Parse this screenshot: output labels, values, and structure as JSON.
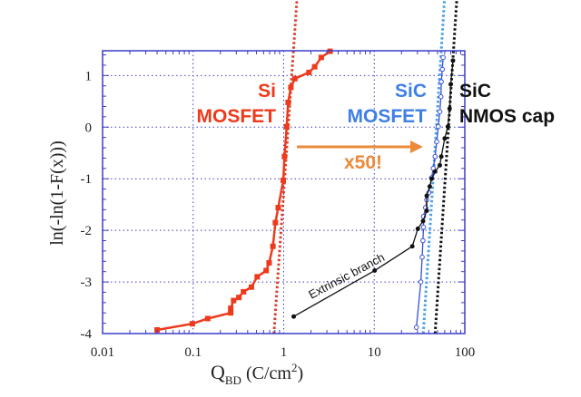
{
  "chart_data": {
    "type": "scatter",
    "xlabel": "Q",
    "xlabel_sub": "BD",
    "xlabel_unit": " (C/cm",
    "xlabel_sup": "2",
    "xlabel_close": ")",
    "ylabel": "ln(-ln(1-F(x)))",
    "xscale": "log",
    "xlim": [
      0.01,
      100
    ],
    "ylim": [
      -4,
      1.48
    ],
    "grid": true,
    "x_ticks": [
      0.01,
      0.1,
      1,
      10,
      100
    ],
    "x_tick_labels": [
      "0.01",
      "0.1",
      "1",
      "10",
      "100"
    ],
    "y_ticks": [
      1,
      0,
      -1,
      -2,
      -3,
      -4
    ],
    "y_tick_labels": [
      "1",
      "0",
      "-1",
      "-2",
      "-3",
      "-4"
    ],
    "colors": {
      "frame": "#3c3cc8",
      "grid": "#3c3cc8",
      "si": "#ee3a1c",
      "si_fit": "#d8402c",
      "sic": "#3a4fd8",
      "sic_fit": "#4aa0e8",
      "nmos": "#111111",
      "arrow": "#ea8a3a",
      "sic_label": "#3f7fe6"
    },
    "series": [
      {
        "name": "Si MOSFET",
        "marker": "filled-square",
        "color": "#ee3a1c",
        "x": [
          0.04,
          0.098,
          0.145,
          0.26,
          0.26,
          0.28,
          0.32,
          0.36,
          0.44,
          0.51,
          0.64,
          0.69,
          0.76,
          0.81,
          0.87,
          0.99,
          1.02,
          1.08,
          1.12,
          1.2,
          1.33,
          1.9,
          2.2,
          2.6,
          3.25
        ],
        "y": [
          -3.93,
          -3.81,
          -3.71,
          -3.6,
          -3.51,
          -3.36,
          -3.3,
          -3.19,
          -3.1,
          -2.9,
          -2.78,
          -2.63,
          -2.31,
          -1.85,
          -1.56,
          -1.03,
          -0.57,
          0.01,
          0.48,
          0.77,
          0.94,
          1.06,
          1.17,
          1.35,
          1.47
        ]
      },
      {
        "name": "SiC MOSFET",
        "marker": "open-circle",
        "color": "#3a4fd8",
        "x": [
          29.2,
          32.7,
          33.8,
          34.5,
          35,
          35,
          36.9,
          38,
          40,
          43,
          44.8,
          47,
          49,
          51,
          53,
          54.5,
          55,
          56.5,
          57.6
        ],
        "y": [
          -3.88,
          -3.0,
          -2.52,
          -2.2,
          -1.94,
          -1.73,
          -1.56,
          -1.41,
          -1.27,
          -0.98,
          -0.8,
          -0.57,
          -0.28,
          0.01,
          0.3,
          0.59,
          0.88,
          1.12,
          1.35
        ]
      },
      {
        "name": "SiC NMOS cap",
        "marker": "filled-circle",
        "color": "#111111",
        "x": [
          1.29,
          10.1,
          26.3,
          30.3,
          34.6,
          38,
          38,
          41,
          43,
          47,
          53,
          55,
          60,
          65,
          68,
          70,
          74
        ],
        "y": [
          -3.67,
          -2.78,
          -2.31,
          -1.97,
          -1.82,
          -1.62,
          -1.33,
          -1.15,
          -1.0,
          -0.86,
          -0.74,
          -0.57,
          -0.22,
          0.01,
          0.36,
          0.83,
          1.29
        ]
      }
    ],
    "fit_lines": [
      {
        "series": "Si MOSFET",
        "style": "dotted",
        "color": "#d8402c",
        "x": [
          0.78,
          1.4
        ],
        "y": [
          -4,
          2.46
        ]
      },
      {
        "series": "SiC MOSFET",
        "style": "dotted",
        "color": "#4aa0e8",
        "x": [
          34.8,
          59.6
        ],
        "y": [
          -4,
          2.46
        ]
      },
      {
        "series": "SiC NMOS cap",
        "style": "dotted",
        "color": "#111111",
        "x": [
          47,
          81.5
        ],
        "y": [
          -4,
          2.46
        ]
      }
    ],
    "annotations": {
      "si_line1": "Si",
      "si_line2": "MOSFET",
      "sic_line1": "SiC",
      "sic_line2": "MOSFET",
      "nmos_line1": "SiC",
      "nmos_line2": "NMOS cap",
      "arrow_label": "x50!",
      "extrinsic": "Extrinsic branch"
    }
  }
}
